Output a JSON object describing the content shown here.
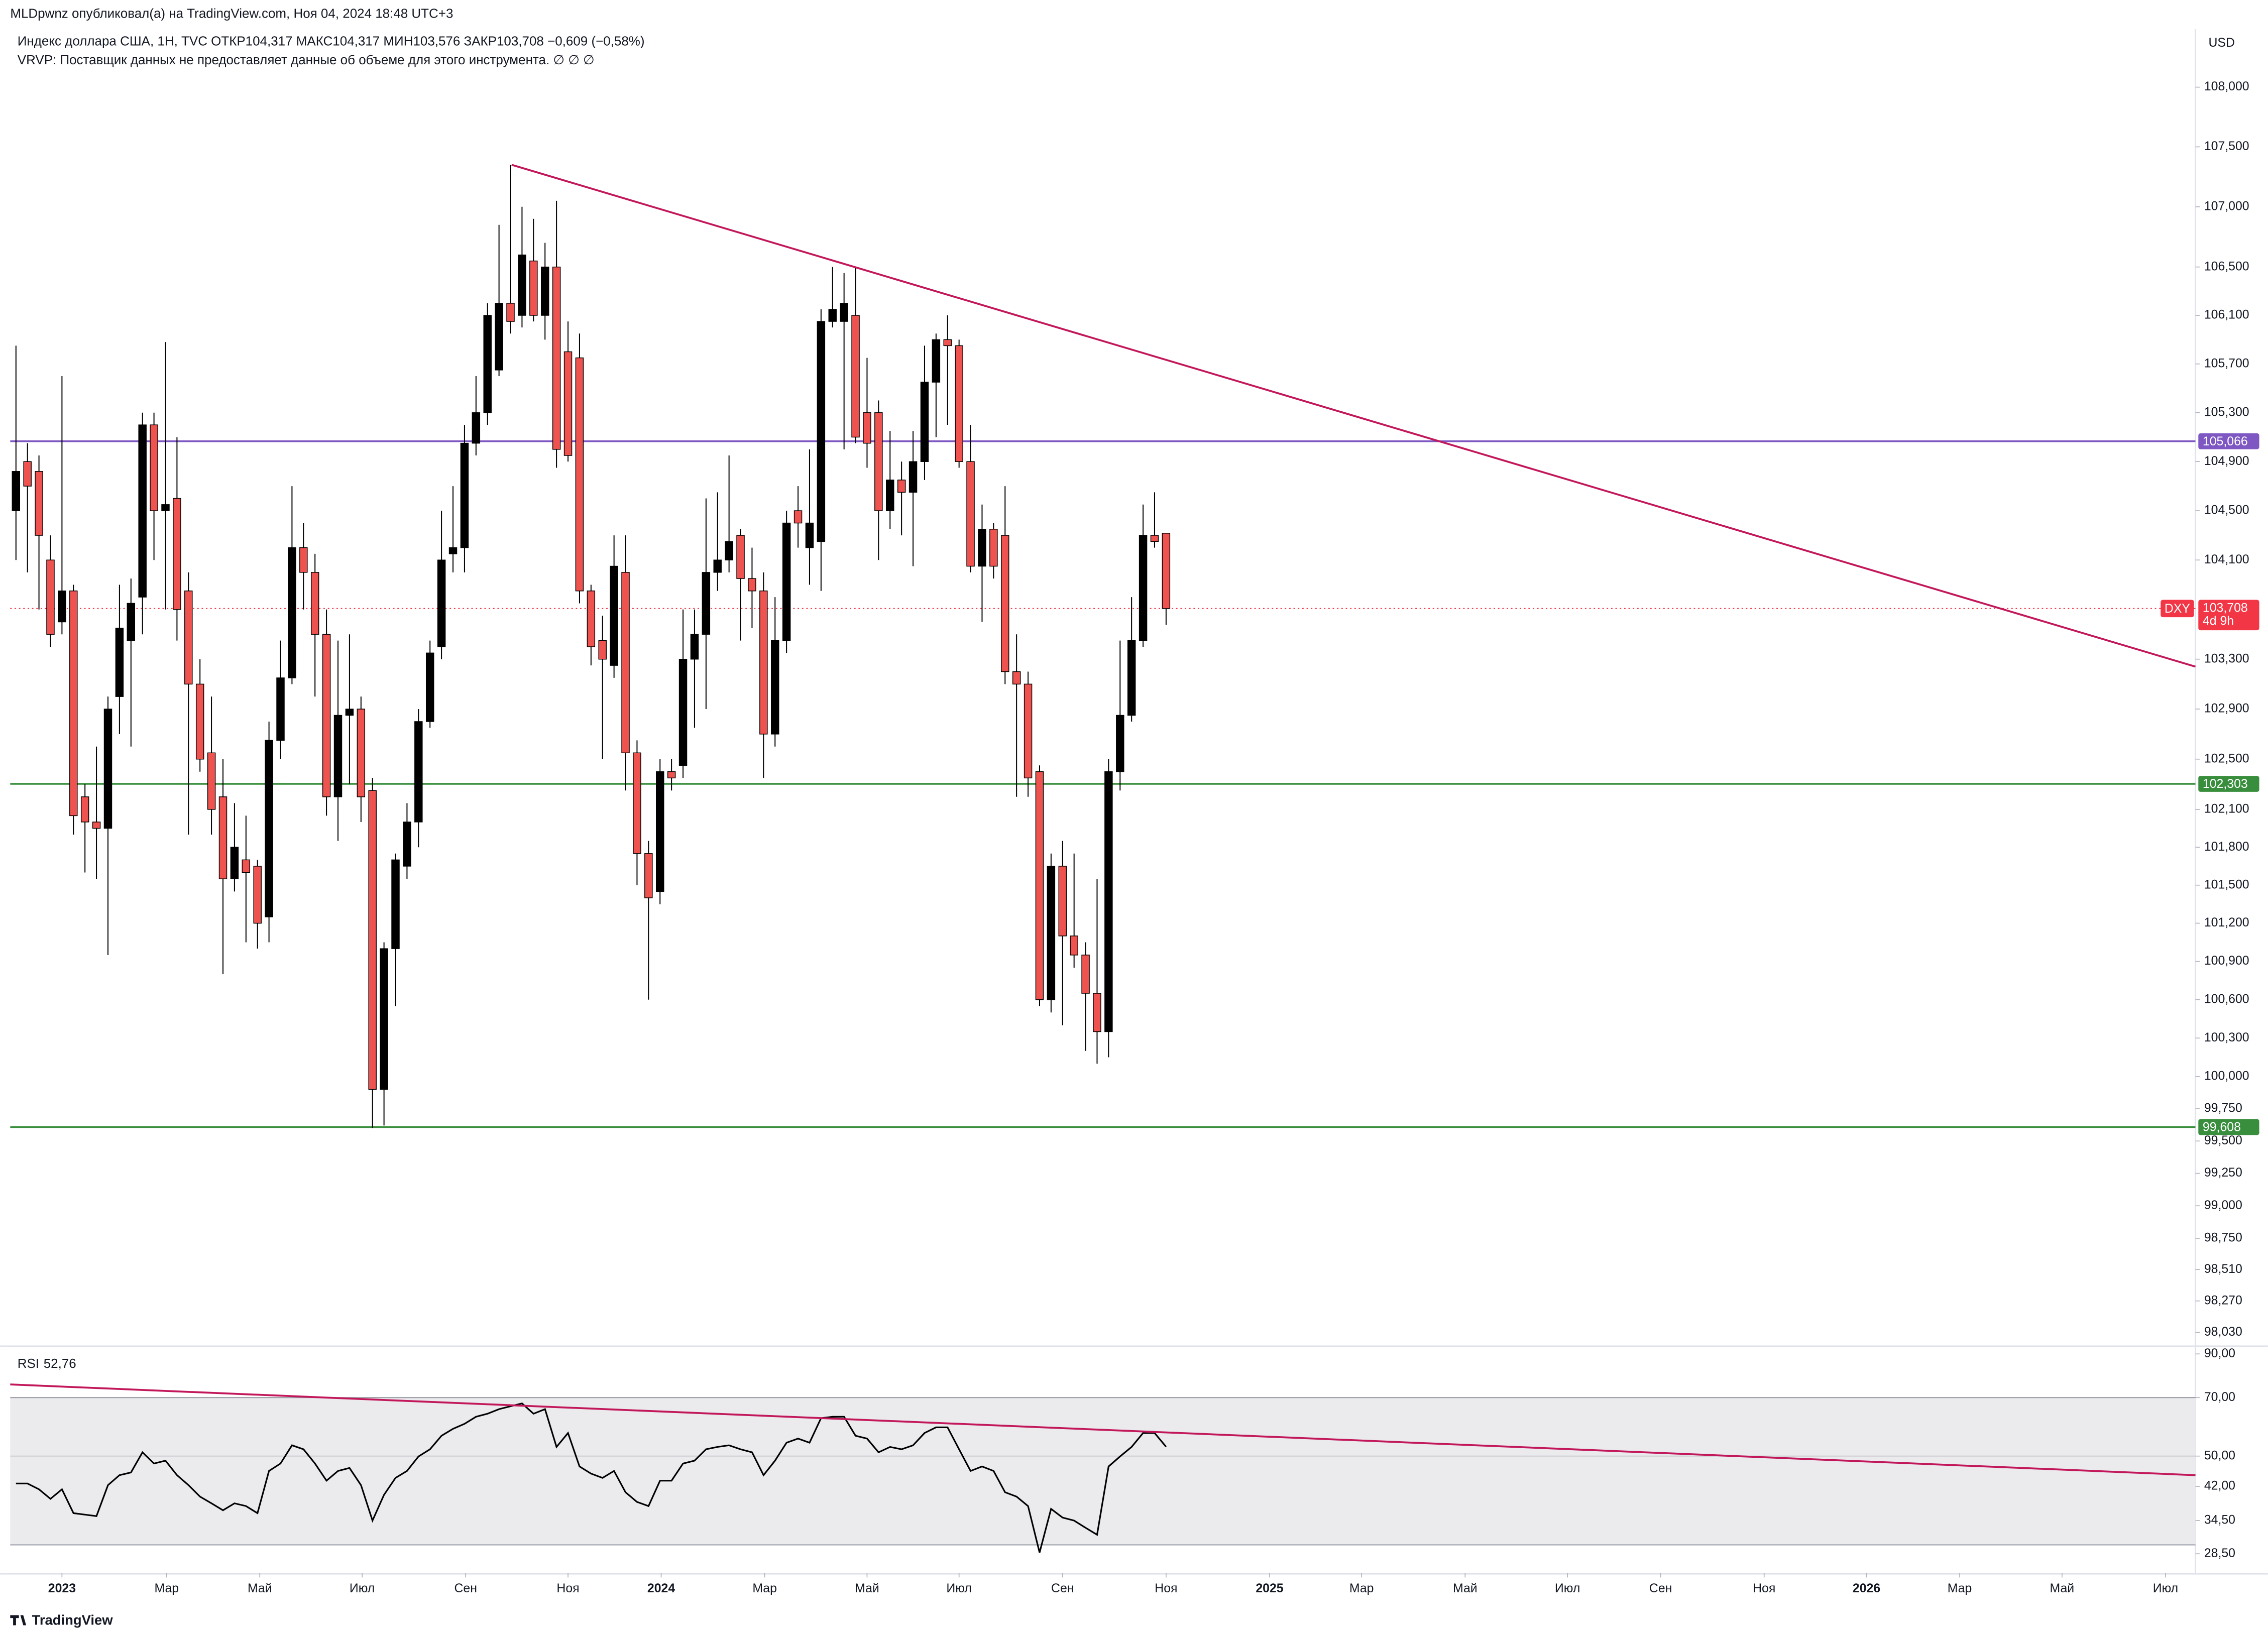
{
  "header": {
    "publisher": "MLDpwnz опубликовал(а) на TradingView.com, Ноя 04, 2024 18:48 UTC+3",
    "symbol_line": "Индекс доллара США, 1Н, TVC  ОТКР104,317  МАКС104,317  МИН103,576  ЗАКР103,708  −0,609 (−0,58%)",
    "vrvp_note": "VRVP: Поставщик данных не предоставляет данные об объеме для этого инструмента.  ∅  ∅  ∅"
  },
  "chart_data": [
    {
      "type": "candlestick",
      "unit": "USD",
      "log_scale": true,
      "grid": false,
      "up_color": "#000000",
      "down_color": "#ef5350",
      "xlim": [
        -0.5,
        189.5
      ],
      "xticks": [
        {
          "value": 4.0,
          "label": "2023"
        },
        {
          "value": 13.1,
          "label": "Мар"
        },
        {
          "value": 21.2,
          "label": "Май"
        },
        {
          "value": 30.1,
          "label": "Июл"
        },
        {
          "value": 39.1,
          "label": "Сен"
        },
        {
          "value": 48.0,
          "label": "Ноя"
        },
        {
          "value": 56.1,
          "label": "2024"
        },
        {
          "value": 65.1,
          "label": "Мар"
        },
        {
          "value": 74.0,
          "label": "Май"
        },
        {
          "value": 82.0,
          "label": "Июл"
        },
        {
          "value": 91.0,
          "label": "Сен"
        },
        {
          "value": 100.0,
          "label": "Ноя"
        },
        {
          "value": 109.0,
          "label": "2025"
        },
        {
          "value": 117.0,
          "label": "Мар"
        },
        {
          "value": 126.0,
          "label": "Май"
        },
        {
          "value": 134.9,
          "label": "Июл"
        },
        {
          "value": 143.0,
          "label": "Сен"
        },
        {
          "value": 152.0,
          "label": "Ноя"
        },
        {
          "value": 160.9,
          "label": "2026"
        },
        {
          "value": 169.0,
          "label": "Мар"
        },
        {
          "value": 177.9,
          "label": "Май"
        },
        {
          "value": 186.9,
          "label": "Июл"
        }
      ],
      "ylim": [
        97.93,
        108.49
      ],
      "yticks": [
        {
          "value": 108,
          "label": "108,000"
        },
        {
          "value": 107.5,
          "label": "107,500"
        },
        {
          "value": 107,
          "label": "107,000"
        },
        {
          "value": 106.5,
          "label": "106,500"
        },
        {
          "value": 106.1,
          "label": "106,100"
        },
        {
          "value": 105.7,
          "label": "105,700"
        },
        {
          "value": 105.3,
          "label": "105,300"
        },
        {
          "value": 104.9,
          "label": "104,900"
        },
        {
          "value": 104.5,
          "label": "104,500"
        },
        {
          "value": 104.1,
          "label": "104,100"
        },
        {
          "value": 103.3,
          "label": "103,300"
        },
        {
          "value": 102.9,
          "label": "102,900"
        },
        {
          "value": 102.5,
          "label": "102,500"
        },
        {
          "value": 102.1,
          "label": "102,100"
        },
        {
          "value": 101.8,
          "label": "101,800"
        },
        {
          "value": 101.5,
          "label": "101,500"
        },
        {
          "value": 101.2,
          "label": "101,200"
        },
        {
          "value": 100.9,
          "label": "100,900"
        },
        {
          "value": 100.6,
          "label": "100,600"
        },
        {
          "value": 100.3,
          "label": "100,300"
        },
        {
          "value": 100,
          "label": "100,000"
        },
        {
          "value": 99.75,
          "label": "99,750"
        },
        {
          "value": 99.5,
          "label": "99,500"
        },
        {
          "value": 99.25,
          "label": "99,250"
        },
        {
          "value": 99,
          "label": "99,000"
        },
        {
          "value": 98.75,
          "label": "98,750"
        },
        {
          "value": 98.51,
          "label": "98,510"
        },
        {
          "value": 98.27,
          "label": "98,270"
        },
        {
          "value": 98.03,
          "label": "98,030"
        }
      ],
      "open": [
        104.5,
        104.9,
        104.82,
        104.1,
        103.6,
        103.85,
        102.2,
        102.0,
        101.95,
        103.0,
        103.45,
        103.8,
        105.2,
        104.5,
        104.6,
        103.85,
        103.1,
        102.55,
        102.2,
        101.55,
        101.7,
        101.65,
        101.25,
        102.65,
        103.15,
        104.2,
        104.0,
        103.5,
        102.2,
        102.85,
        102.9,
        102.25,
        99.9,
        101.0,
        101.65,
        102.0,
        102.8,
        103.4,
        104.15,
        104.2,
        105.05,
        105.3,
        105.65,
        106.2,
        106.1,
        106.55,
        106.1,
        106.5,
        105.8,
        105.75,
        103.85,
        103.45,
        103.25,
        104.0,
        102.55,
        101.75,
        101.45,
        102.4,
        102.45,
        103.3,
        103.5,
        104.0,
        104.1,
        104.3,
        103.95,
        103.85,
        102.7,
        103.45,
        104.5,
        104.2,
        104.25,
        106.05,
        106.05,
        106.1,
        105.3,
        105.3,
        104.5,
        104.75,
        104.65,
        104.9,
        105.55,
        105.9,
        105.85,
        104.9,
        104.05,
        104.35,
        104.3,
        103.2,
        103.1,
        102.4,
        100.6,
        101.65,
        101.1,
        100.95,
        100.65,
        100.35,
        102.4,
        102.85,
        103.45,
        104.3,
        104.317
      ],
      "high": [
        105.85,
        105.05,
        104.95,
        104.3,
        105.6,
        103.9,
        102.3,
        102.6,
        103.0,
        103.9,
        103.95,
        105.3,
        105.3,
        105.88,
        105.1,
        104.0,
        103.3,
        103.0,
        102.5,
        102.15,
        102.05,
        101.7,
        102.8,
        103.45,
        104.7,
        104.4,
        104.15,
        103.7,
        103.45,
        103.5,
        103.0,
        102.35,
        101.05,
        101.75,
        102.15,
        102.9,
        103.45,
        104.5,
        104.7,
        105.2,
        105.6,
        106.2,
        106.85,
        107.35,
        107.0,
        106.9,
        106.7,
        107.05,
        106.05,
        105.95,
        103.9,
        103.65,
        104.3,
        104.3,
        102.65,
        101.85,
        102.5,
        102.5,
        103.7,
        103.7,
        104.6,
        104.65,
        104.95,
        104.35,
        104.2,
        104.0,
        103.8,
        104.5,
        104.7,
        105.0,
        106.15,
        106.5,
        106.45,
        106.5,
        105.75,
        105.4,
        105.15,
        104.9,
        105.15,
        105.85,
        105.95,
        106.1,
        105.9,
        105.2,
        104.55,
        104.4,
        104.7,
        103.5,
        103.2,
        102.45,
        101.75,
        101.85,
        101.75,
        101.05,
        101.55,
        102.5,
        103.45,
        103.8,
        104.55,
        104.65,
        104.317
      ],
      "low": [
        104.1,
        104.0,
        103.7,
        103.4,
        103.5,
        101.9,
        101.6,
        101.55,
        100.95,
        102.7,
        102.6,
        103.5,
        104.1,
        103.7,
        103.45,
        101.9,
        102.4,
        101.9,
        100.8,
        101.45,
        101.05,
        101.0,
        101.05,
        102.5,
        103.1,
        103.7,
        103.0,
        102.05,
        101.85,
        102.3,
        102.0,
        99.6,
        99.62,
        100.55,
        101.55,
        101.8,
        102.75,
        103.3,
        104.0,
        104.0,
        104.95,
        105.2,
        105.6,
        105.95,
        106.0,
        106.05,
        105.9,
        104.85,
        104.9,
        103.75,
        103.25,
        102.5,
        103.15,
        102.25,
        101.5,
        100.6,
        101.35,
        102.25,
        102.35,
        102.75,
        102.9,
        103.85,
        104.0,
        103.45,
        103.55,
        102.35,
        102.6,
        103.35,
        104.2,
        103.9,
        103.85,
        106.0,
        105.0,
        105.05,
        104.85,
        104.1,
        104.35,
        104.3,
        104.05,
        104.75,
        105.1,
        105.2,
        104.85,
        104.0,
        103.6,
        103.95,
        103.1,
        102.2,
        102.2,
        100.55,
        100.5,
        100.4,
        100.85,
        100.2,
        100.1,
        100.15,
        102.25,
        102.8,
        103.4,
        104.2,
        103.576
      ],
      "close": [
        104.82,
        104.7,
        104.3,
        103.5,
        103.85,
        102.05,
        102.0,
        101.95,
        102.9,
        103.55,
        103.75,
        105.2,
        104.5,
        104.55,
        103.7,
        103.1,
        102.5,
        102.1,
        101.55,
        101.8,
        101.6,
        101.2,
        102.65,
        103.15,
        104.2,
        104.0,
        103.5,
        102.2,
        102.85,
        102.9,
        102.2,
        99.9,
        101.0,
        101.7,
        102.0,
        102.8,
        103.35,
        104.1,
        104.2,
        105.05,
        105.3,
        106.1,
        106.2,
        106.05,
        106.6,
        106.1,
        106.5,
        105.0,
        104.95,
        103.85,
        103.4,
        103.3,
        104.05,
        102.55,
        101.75,
        101.4,
        102.4,
        102.35,
        103.3,
        103.5,
        104.0,
        104.1,
        104.25,
        103.95,
        103.85,
        102.7,
        103.45,
        104.4,
        104.4,
        104.4,
        106.05,
        106.15,
        106.2,
        105.1,
        105.05,
        104.5,
        104.75,
        104.65,
        104.9,
        105.55,
        105.9,
        105.85,
        104.9,
        104.05,
        104.35,
        104.05,
        103.2,
        103.1,
        102.35,
        100.6,
        101.65,
        101.1,
        100.95,
        100.65,
        100.35,
        102.4,
        102.85,
        103.45,
        104.3,
        104.25,
        103.708
      ],
      "hlines": [
        {
          "value": 105.066,
          "label": "105,066",
          "color": "#7e57c2"
        },
        {
          "value": 102.303,
          "label": "102,303",
          "color": "#388e3c"
        },
        {
          "value": 99.608,
          "label": "99,608",
          "color": "#388e3c"
        }
      ],
      "last_price": {
        "symbol": "DXY",
        "value": 103.708,
        "label": "103,708",
        "countdown": "4d 9h",
        "color": "#f23645"
      },
      "trendline": {
        "x": [
          43.1,
          189.5
        ],
        "y": [
          107.35,
          103.24
        ],
        "color": "#c2185b"
      }
    },
    {
      "type": "line",
      "name": "RSI",
      "last_label": "52,76",
      "log_scale": true,
      "ylim": [
        25.5,
        93.7
      ],
      "yticks": [
        {
          "value": 90,
          "label": "90,00"
        },
        {
          "value": 70,
          "label": "70,00"
        },
        {
          "value": 50,
          "label": "50,00"
        },
        {
          "value": 42,
          "label": "42,00"
        },
        {
          "value": 34.5,
          "label": "34,50"
        },
        {
          "value": 28.5,
          "label": "28,50"
        }
      ],
      "bands": {
        "upper": 70,
        "middle": 50,
        "lower": 30
      },
      "series": [
        {
          "name": "RSI",
          "color": "#000000",
          "values": [
            42.7,
            42.7,
            41.3,
            39.1,
            41.3,
            36.0,
            35.7,
            35.4,
            42.3,
            44.8,
            45.5,
            51.1,
            47.9,
            48.7,
            44.8,
            42.3,
            39.6,
            38.1,
            36.6,
            38.1,
            37.5,
            36.0,
            45.9,
            47.9,
            53.2,
            52.0,
            47.9,
            43.4,
            45.9,
            46.7,
            42.3,
            34.5,
            40.0,
            44.1,
            45.9,
            49.9,
            52.0,
            56.2,
            58.5,
            60.2,
            62.7,
            63.8,
            65.5,
            66.6,
            67.7,
            63.8,
            65.5,
            52.7,
            57.1,
            47.1,
            45.2,
            44.1,
            45.9,
            40.6,
            38.4,
            37.5,
            43.4,
            43.4,
            47.9,
            48.7,
            52.0,
            52.7,
            53.2,
            52.0,
            51.1,
            44.8,
            48.7,
            54.0,
            55.3,
            54.0,
            62.2,
            62.7,
            62.7,
            56.2,
            55.3,
            51.1,
            52.7,
            52.0,
            53.2,
            57.1,
            59.0,
            59.0,
            52.0,
            45.9,
            47.1,
            45.9,
            40.6,
            39.6,
            37.5,
            28.7,
            36.9,
            35.1,
            34.5,
            33.1,
            31.8,
            47.1,
            49.9,
            52.7,
            57.1,
            57.1,
            52.76
          ]
        }
      ],
      "trendline": {
        "x": [
          -0.5,
          189.5
        ],
        "y": [
          75.5,
          44.8
        ],
        "color": "#c2185b"
      }
    }
  ],
  "footer": {
    "brand": "TradingView"
  }
}
